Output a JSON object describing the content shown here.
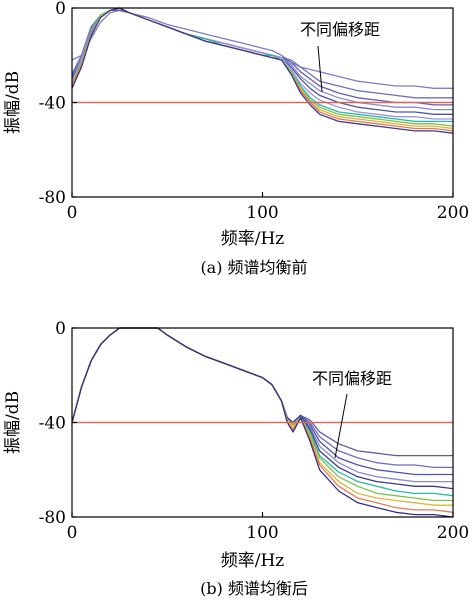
{
  "chart_data": [
    {
      "type": "line",
      "panel_caption": "(a)  频谱均衡前",
      "xlabel": "频率/Hz",
      "ylabel": "振幅/dB",
      "xlim": [
        0,
        200
      ],
      "ylim": [
        -80,
        0
      ],
      "xticks": [
        "0",
        "100",
        "200"
      ],
      "yticks": [
        "0",
        "-40",
        "-80"
      ],
      "annotation": "不同偏移距",
      "reference_line": {
        "y": -40,
        "color": "#d9695a"
      },
      "x": [
        0,
        5,
        10,
        15,
        20,
        25,
        30,
        40,
        50,
        60,
        70,
        80,
        90,
        100,
        105,
        110,
        115,
        120,
        125,
        130,
        140,
        150,
        160,
        170,
        180,
        190,
        200
      ],
      "series": [
        {
          "color": "#7d7ec7",
          "values": [
            -22,
            -20,
            -13,
            -6,
            -2,
            -1,
            -2,
            -4,
            -7,
            -9,
            -11,
            -13,
            -15,
            -17,
            -18,
            -20,
            -23,
            -25,
            -26,
            -27,
            -29,
            -31,
            -32,
            -33,
            -33,
            -34,
            -34
          ]
        },
        {
          "color": "#6f6fb8",
          "values": [
            -28,
            -20,
            -8,
            -3,
            -1,
            -1,
            -2,
            -5,
            -8,
            -11,
            -13,
            -15,
            -17,
            -19,
            -20,
            -21,
            -22,
            -25,
            -28,
            -31,
            -33,
            -35,
            -36,
            -37,
            -38,
            -38,
            -38
          ]
        },
        {
          "color": "#5f5fae",
          "values": [
            -29,
            -21,
            -9,
            -3,
            -1,
            -1,
            -2,
            -5,
            -8,
            -11,
            -13,
            -15,
            -17,
            -19,
            -20,
            -21,
            -23,
            -27,
            -30,
            -33,
            -36,
            -38,
            -39,
            -40,
            -40,
            -41,
            -41
          ]
        },
        {
          "color": "#8a8ad0",
          "values": [
            -30,
            -21,
            -9,
            -3,
            -1,
            0,
            -2,
            -5,
            -8,
            -11,
            -13,
            -15,
            -17,
            -19,
            -20,
            -21,
            -24,
            -29,
            -32,
            -35,
            -38,
            -40,
            -41,
            -42,
            -42,
            -43,
            -43
          ]
        },
        {
          "color": "#4f52a6",
          "values": [
            -30,
            -22,
            -10,
            -3,
            -1,
            0,
            -2,
            -5,
            -8,
            -11,
            -13,
            -15,
            -17,
            -19,
            -20,
            -21,
            -25,
            -30,
            -34,
            -37,
            -40,
            -42,
            -43,
            -44,
            -44,
            -45,
            -45
          ]
        },
        {
          "color": "#9898d8",
          "values": [
            -31,
            -22,
            -10,
            -3,
            -1,
            0,
            -2,
            -5,
            -8,
            -11,
            -13,
            -15,
            -17,
            -19,
            -20,
            -21,
            -26,
            -32,
            -36,
            -39,
            -42,
            -44,
            -45,
            -46,
            -46,
            -47,
            -47
          ]
        },
        {
          "color": "#2bb8a8",
          "values": [
            -32,
            -23,
            -10,
            -3,
            -1,
            0,
            -2,
            -5,
            -8,
            -11,
            -13,
            -16,
            -18,
            -20,
            -20,
            -22,
            -27,
            -33,
            -38,
            -41,
            -44,
            -45,
            -46,
            -47,
            -48,
            -48,
            -48
          ]
        },
        {
          "color": "#7cc24a",
          "values": [
            -32,
            -23,
            -11,
            -3,
            -1,
            0,
            -2,
            -5,
            -8,
            -11,
            -14,
            -16,
            -18,
            -20,
            -21,
            -22,
            -27,
            -34,
            -39,
            -42,
            -45,
            -46,
            -47,
            -48,
            -49,
            -49,
            -50
          ]
        },
        {
          "color": "#e0b33a",
          "values": [
            -33,
            -24,
            -11,
            -4,
            -1,
            0,
            -2,
            -5,
            -8,
            -11,
            -14,
            -16,
            -18,
            -20,
            -21,
            -22,
            -28,
            -34,
            -40,
            -43,
            -46,
            -47,
            -48,
            -49,
            -50,
            -50,
            -51
          ]
        },
        {
          "color": "#e27a5c",
          "values": [
            -33,
            -24,
            -11,
            -4,
            -1,
            0,
            -2,
            -5,
            -8,
            -11,
            -14,
            -16,
            -18,
            -20,
            -21,
            -22,
            -28,
            -35,
            -40,
            -44,
            -47,
            -48,
            -49,
            -50,
            -51,
            -51,
            -52
          ]
        },
        {
          "color": "#3a3c8e",
          "values": [
            -34,
            -25,
            -12,
            -4,
            -1,
            0,
            -2,
            -5,
            -8,
            -11,
            -14,
            -16,
            -18,
            -20,
            -21,
            -22,
            -28,
            -36,
            -41,
            -45,
            -48,
            -49,
            -50,
            -51,
            -52,
            -52,
            -53
          ]
        }
      ]
    },
    {
      "type": "line",
      "panel_caption": "(b)  频谱均衡后",
      "xlabel": "频率/Hz",
      "ylabel": "振幅/dB",
      "xlim": [
        0,
        200
      ],
      "ylim": [
        -80,
        0
      ],
      "xticks": [
        "0",
        "100",
        "200"
      ],
      "yticks": [
        "0",
        "-40",
        "-80"
      ],
      "annotation": "不同偏移距",
      "reference_line": {
        "y": -40,
        "color": "#d9695a"
      },
      "x": [
        0,
        5,
        10,
        15,
        20,
        25,
        30,
        40,
        45,
        50,
        60,
        70,
        80,
        90,
        100,
        105,
        110,
        113,
        116,
        120,
        125,
        130,
        140,
        150,
        160,
        170,
        180,
        190,
        200
      ],
      "series": [
        {
          "color": "#5b5da8",
          "values": [
            -40,
            -25,
            -14,
            -7,
            -3,
            0,
            0,
            0,
            0,
            -3,
            -8,
            -12,
            -15,
            -18,
            -21,
            -24,
            -31,
            -38,
            -40,
            -37,
            -39,
            -44,
            -49,
            -52,
            -53,
            -54,
            -54,
            -54,
            -54
          ]
        },
        {
          "color": "#6f6fb8",
          "values": [
            -40,
            -25,
            -14,
            -7,
            -3,
            0,
            0,
            0,
            0,
            -3,
            -8,
            -12,
            -15,
            -18,
            -21,
            -24,
            -31,
            -38,
            -40,
            -37,
            -40,
            -46,
            -52,
            -55,
            -57,
            -58,
            -58,
            -59,
            -59
          ]
        },
        {
          "color": "#4f52a6",
          "values": [
            -40,
            -25,
            -14,
            -7,
            -3,
            0,
            0,
            0,
            0,
            -3,
            -8,
            -12,
            -15,
            -18,
            -21,
            -24,
            -31,
            -38,
            -40,
            -37,
            -41,
            -48,
            -55,
            -58,
            -60,
            -61,
            -62,
            -62,
            -62
          ]
        },
        {
          "color": "#8a8ad0",
          "values": [
            -40,
            -25,
            -14,
            -7,
            -3,
            0,
            0,
            0,
            0,
            -3,
            -8,
            -12,
            -15,
            -18,
            -21,
            -24,
            -31,
            -38,
            -40,
            -37,
            -42,
            -50,
            -57,
            -61,
            -63,
            -64,
            -65,
            -65,
            -65
          ]
        },
        {
          "color": "#3a3c8e",
          "values": [
            -40,
            -25,
            -14,
            -7,
            -3,
            0,
            0,
            0,
            0,
            -3,
            -8,
            -12,
            -15,
            -18,
            -21,
            -24,
            -31,
            -38,
            -40,
            -37,
            -43,
            -52,
            -59,
            -63,
            -65,
            -66,
            -67,
            -67,
            -68
          ]
        },
        {
          "color": "#2bb8a8",
          "values": [
            -40,
            -25,
            -14,
            -7,
            -3,
            0,
            0,
            0,
            0,
            -3,
            -8,
            -12,
            -15,
            -18,
            -21,
            -24,
            -31,
            -39,
            -41,
            -38,
            -44,
            -54,
            -61,
            -65,
            -67,
            -69,
            -70,
            -70,
            -71
          ]
        },
        {
          "color": "#7cc24a",
          "values": [
            -40,
            -25,
            -14,
            -7,
            -3,
            0,
            0,
            0,
            0,
            -3,
            -8,
            -12,
            -15,
            -18,
            -21,
            -24,
            -31,
            -39,
            -41,
            -38,
            -45,
            -55,
            -63,
            -67,
            -70,
            -71,
            -72,
            -73,
            -73
          ]
        },
        {
          "color": "#e0b33a",
          "values": [
            -40,
            -25,
            -14,
            -7,
            -3,
            0,
            0,
            0,
            0,
            -3,
            -8,
            -12,
            -15,
            -18,
            -21,
            -24,
            -31,
            -39,
            -42,
            -38,
            -46,
            -57,
            -65,
            -70,
            -72,
            -73,
            -74,
            -75,
            -75
          ]
        },
        {
          "color": "#e27a5c",
          "values": [
            -40,
            -25,
            -14,
            -7,
            -3,
            0,
            0,
            0,
            0,
            -3,
            -8,
            -12,
            -15,
            -18,
            -21,
            -24,
            -31,
            -40,
            -43,
            -38,
            -47,
            -58,
            -67,
            -72,
            -74,
            -76,
            -77,
            -77,
            -78
          ]
        },
        {
          "color": "#2f3182",
          "values": [
            -40,
            -25,
            -14,
            -7,
            -3,
            0,
            0,
            0,
            0,
            -3,
            -8,
            -12,
            -15,
            -18,
            -21,
            -24,
            -31,
            -40,
            -44,
            -38,
            -48,
            -60,
            -69,
            -74,
            -76,
            -78,
            -79,
            -79,
            -80
          ]
        }
      ]
    }
  ]
}
